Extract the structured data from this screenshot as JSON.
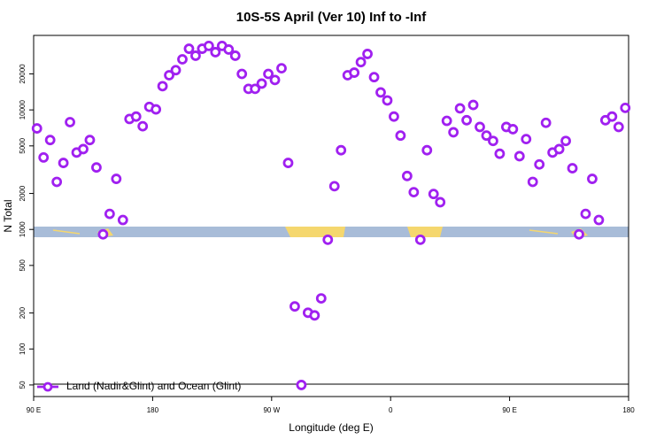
{
  "chart_data": {
    "type": "scatter",
    "title": "10S-5S April (Ver 10)   Inf to -Inf",
    "xlabel": "Longitude (deg E)",
    "ylabel": "N Total",
    "log_y": true,
    "legend": "lower left",
    "xlim": [
      90,
      540
    ],
    "xticks": [
      {
        "value": 90,
        "label": "90 E"
      },
      {
        "value": 180,
        "label": "180"
      },
      {
        "value": 270,
        "label": "90 W"
      },
      {
        "value": 360,
        "label": "0"
      },
      {
        "value": 450,
        "label": "90 E"
      },
      {
        "value": 540,
        "label": "180"
      }
    ],
    "ylim": [
      40,
      42000
    ],
    "yticks": [
      50,
      100,
      200,
      500,
      1000,
      2000,
      5000,
      10000,
      20000
    ],
    "series": [
      {
        "name": "Land (Nadir&Glint) and Ocean (Glint)",
        "color": "#a020f0",
        "x": [
          92.5,
          97.5,
          102.5,
          107.5,
          112.5,
          117.5,
          122.5,
          127.5,
          132.5,
          137.5,
          142.5,
          147.5,
          152.5,
          157.5,
          162.5,
          167.5,
          172.5,
          177.5,
          182.5,
          187.5,
          192.5,
          197.5,
          202.5,
          207.5,
          212.5,
          217.5,
          222.5,
          227.5,
          232.5,
          237.5,
          242.5,
          247.5,
          252.5,
          257.5,
          262.5,
          267.5,
          272.5,
          277.5,
          282.5,
          287.5,
          292.5,
          297.5,
          302.5,
          307.5,
          312.5,
          317.5,
          322.5,
          327.5,
          332.5,
          337.5,
          342.5,
          347.5,
          352.5,
          357.5,
          362.5,
          367.5,
          372.5,
          377.5,
          382.5,
          387.5,
          392.5,
          397.5,
          402.5,
          407.5,
          412.5,
          417.5,
          422.5,
          427.5,
          432.5,
          437.5,
          442.5,
          447.5,
          452.5,
          457.5,
          462.5,
          467.5,
          472.5,
          477.5,
          482.5,
          487.5,
          492.5,
          497.5,
          502.5,
          507.5,
          512.5,
          517.5,
          522.5,
          527.5,
          532.5,
          537.5
        ],
        "values": [
          7000,
          4000,
          5600,
          2500,
          3600,
          7900,
          4400,
          4700,
          5600,
          3300,
          910,
          1350,
          2650,
          1200,
          8400,
          8800,
          7300,
          10600,
          10100,
          15800,
          19500,
          21500,
          26500,
          32500,
          28400,
          32500,
          34300,
          30400,
          34300,
          32000,
          28400,
          20000,
          15000,
          15000,
          16600,
          20000,
          17800,
          22300,
          3600,
          227,
          50,
          201,
          191,
          265,
          820,
          2300,
          4600,
          19500,
          20500,
          25100,
          29400,
          18800,
          14000,
          12000,
          8800,
          6100,
          2800,
          2050,
          820,
          4600,
          1980,
          1690,
          8100,
          6500,
          10300,
          8200,
          11000,
          7200,
          6100,
          5500,
          4300,
          7200,
          6900,
          4100,
          5700,
          2500,
          3500,
          7800,
          4400,
          4700,
          5500,
          3250,
          910,
          1350,
          2650,
          1200,
          8200,
          8800,
          7200,
          10400
        ]
      }
    ]
  }
}
